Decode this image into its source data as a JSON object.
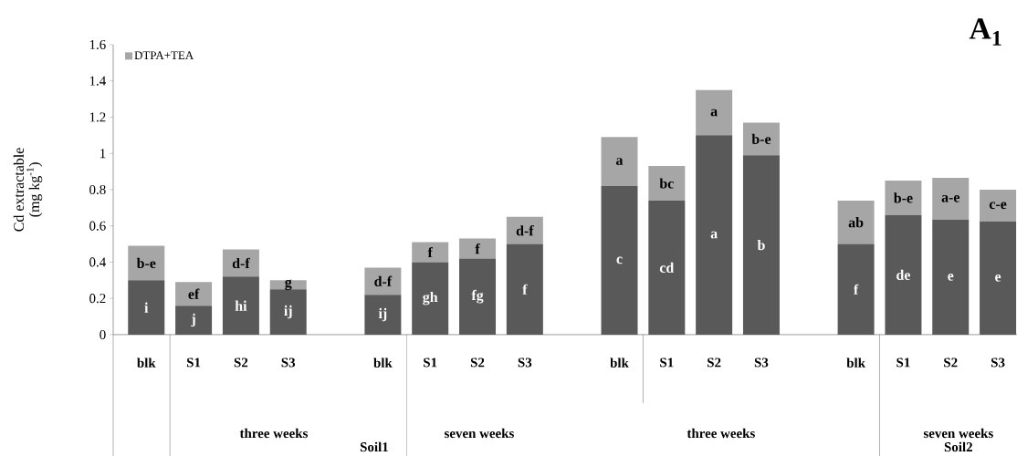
{
  "chart_data": {
    "type": "bar",
    "stacked": true,
    "ylabel": "Cd extractable (mg kg$^{-1}$)",
    "categories": [
      "blk",
      "S1",
      "S2",
      "S3",
      null,
      "blk",
      "S1",
      "S2",
      "S3",
      null,
      "blk",
      "S1",
      "S2",
      "S3",
      null,
      "blk",
      "S1",
      "S2",
      "S3"
    ],
    "series": [
      {
        "color": "#595959",
        "values": [
          0.3,
          0.16,
          0.32,
          0.25,
          null,
          0.22,
          0.4,
          0.42,
          0.5,
          null,
          0.82,
          0.74,
          1.1,
          0.99,
          null,
          0.5,
          0.66,
          0.635,
          0.625
        ],
        "value_labels": [
          "i",
          "j",
          "hi",
          "ij",
          null,
          "ij",
          "gh",
          "fg",
          "f",
          null,
          "c",
          "cd",
          "a",
          "b",
          null,
          "f",
          "de",
          "e",
          "e"
        ]
      },
      {
        "name": "DTPA+TEA",
        "color": "#a6a6a6",
        "values": [
          0.19,
          0.13,
          0.15,
          0.05,
          null,
          0.15,
          0.11,
          0.11,
          0.15,
          null,
          0.27,
          0.19,
          0.25,
          0.18,
          null,
          0.24,
          0.19,
          0.23,
          0.175
        ],
        "value_labels": [
          "b-e",
          "ef",
          "d-f",
          "g",
          null,
          "d-f",
          "f",
          "f",
          "d-f",
          null,
          "a",
          "bc",
          "a",
          "b-e",
          null,
          "ab",
          "b-e",
          "a-e",
          "c-e"
        ]
      }
    ],
    "ylim": [
      0,
      1.6
    ],
    "yticks": [
      0,
      0.2,
      0.4,
      0.6,
      0.8,
      1,
      1.2,
      1.4,
      1.6
    ],
    "legend": "top left",
    "annotations": [
      "three weeks",
      "Soil1",
      "seven weeks",
      "three weeks",
      "seven weeks",
      "Soil2",
      "A$_{1}$"
    ]
  }
}
